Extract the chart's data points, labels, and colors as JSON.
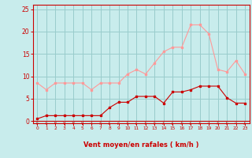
{
  "x": [
    0,
    1,
    2,
    3,
    4,
    5,
    6,
    7,
    8,
    9,
    10,
    11,
    12,
    13,
    14,
    15,
    16,
    17,
    18,
    19,
    20,
    21,
    22,
    23
  ],
  "wind_avg": [
    0.5,
    1.2,
    1.2,
    1.2,
    1.2,
    1.2,
    1.2,
    1.2,
    3.0,
    4.2,
    4.2,
    5.5,
    5.5,
    5.5,
    4.0,
    6.5,
    6.5,
    7.0,
    7.8,
    7.8,
    7.8,
    5.2,
    4.0,
    4.0
  ],
  "wind_gust": [
    8.5,
    7.0,
    8.5,
    8.5,
    8.5,
    8.5,
    7.0,
    8.5,
    8.5,
    8.5,
    10.5,
    11.5,
    10.5,
    13.0,
    15.5,
    16.5,
    16.5,
    21.5,
    21.5,
    19.5,
    11.5,
    11.0,
    13.5,
    10.5
  ],
  "line_color_avg": "#cc0000",
  "line_color_gust": "#ff9999",
  "bg_color": "#c8ecec",
  "grid_color": "#99cccc",
  "axis_color": "#cc0000",
  "xlabel": "Vent moyen/en rafales ( km/h )",
  "ylim": [
    -0.5,
    26
  ],
  "xlim": [
    -0.5,
    23.5
  ],
  "yticks": [
    0,
    5,
    10,
    15,
    20,
    25
  ],
  "xticks": [
    0,
    1,
    2,
    3,
    4,
    5,
    6,
    7,
    8,
    9,
    10,
    11,
    12,
    13,
    14,
    15,
    16,
    17,
    18,
    19,
    20,
    21,
    22,
    23
  ],
  "arrow_angles": [
    225,
    225,
    180,
    180,
    180,
    180,
    135,
    225,
    270,
    270,
    225,
    270,
    225,
    225,
    270,
    270,
    225,
    270,
    225,
    135,
    225,
    225,
    135,
    270
  ]
}
